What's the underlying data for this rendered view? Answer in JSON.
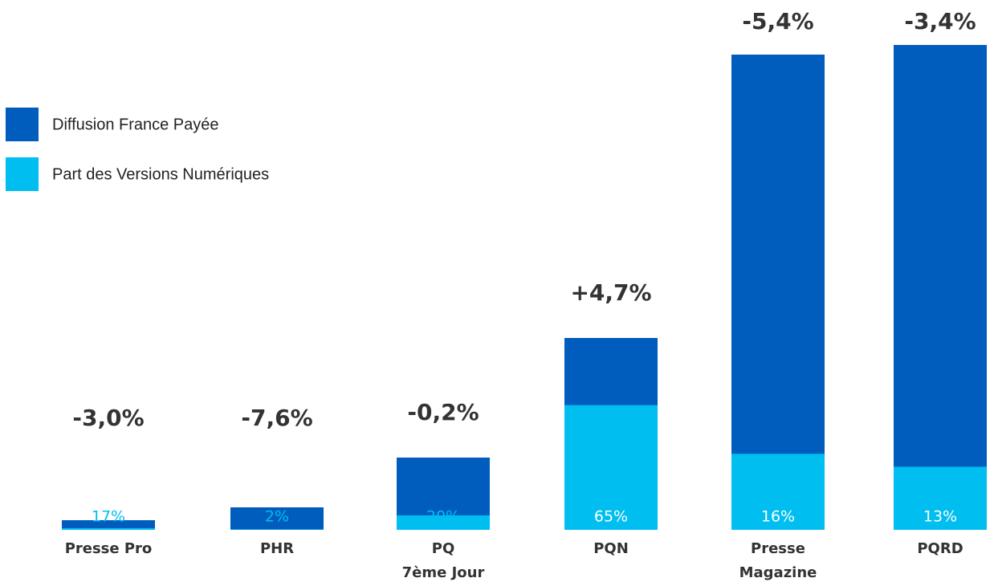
{
  "chart_data": {
    "type": "stacked-bar",
    "categories": [
      [
        "Presse Pro"
      ],
      [
        "PHR"
      ],
      [
        "PQ",
        "7ème Jour"
      ],
      [
        "PQN"
      ],
      [
        "Presse",
        "Magazine"
      ],
      [
        "PQRD"
      ]
    ],
    "series": [
      {
        "name": "Diffusion France Payée",
        "color": "#005dbe",
        "values": [
          12,
          28,
          90,
          239,
          592,
          604
        ]
      },
      {
        "name": "Part des Versions Numériques",
        "color": "#00bef0",
        "values": [
          17,
          2,
          20,
          65,
          16,
          13
        ],
        "value_labels": [
          "17%",
          "2%",
          "20%",
          "65%",
          "16%",
          "13%"
        ]
      }
    ],
    "changes": [
      -3.0,
      -7.6,
      -0.2,
      4.7,
      -5.4,
      -3.4
    ],
    "change_labels": [
      "-3,0%",
      "-7,6%",
      "-0,2%",
      "+4,7%",
      "-5,4%",
      "-3,4%"
    ],
    "legend": "upper left"
  }
}
